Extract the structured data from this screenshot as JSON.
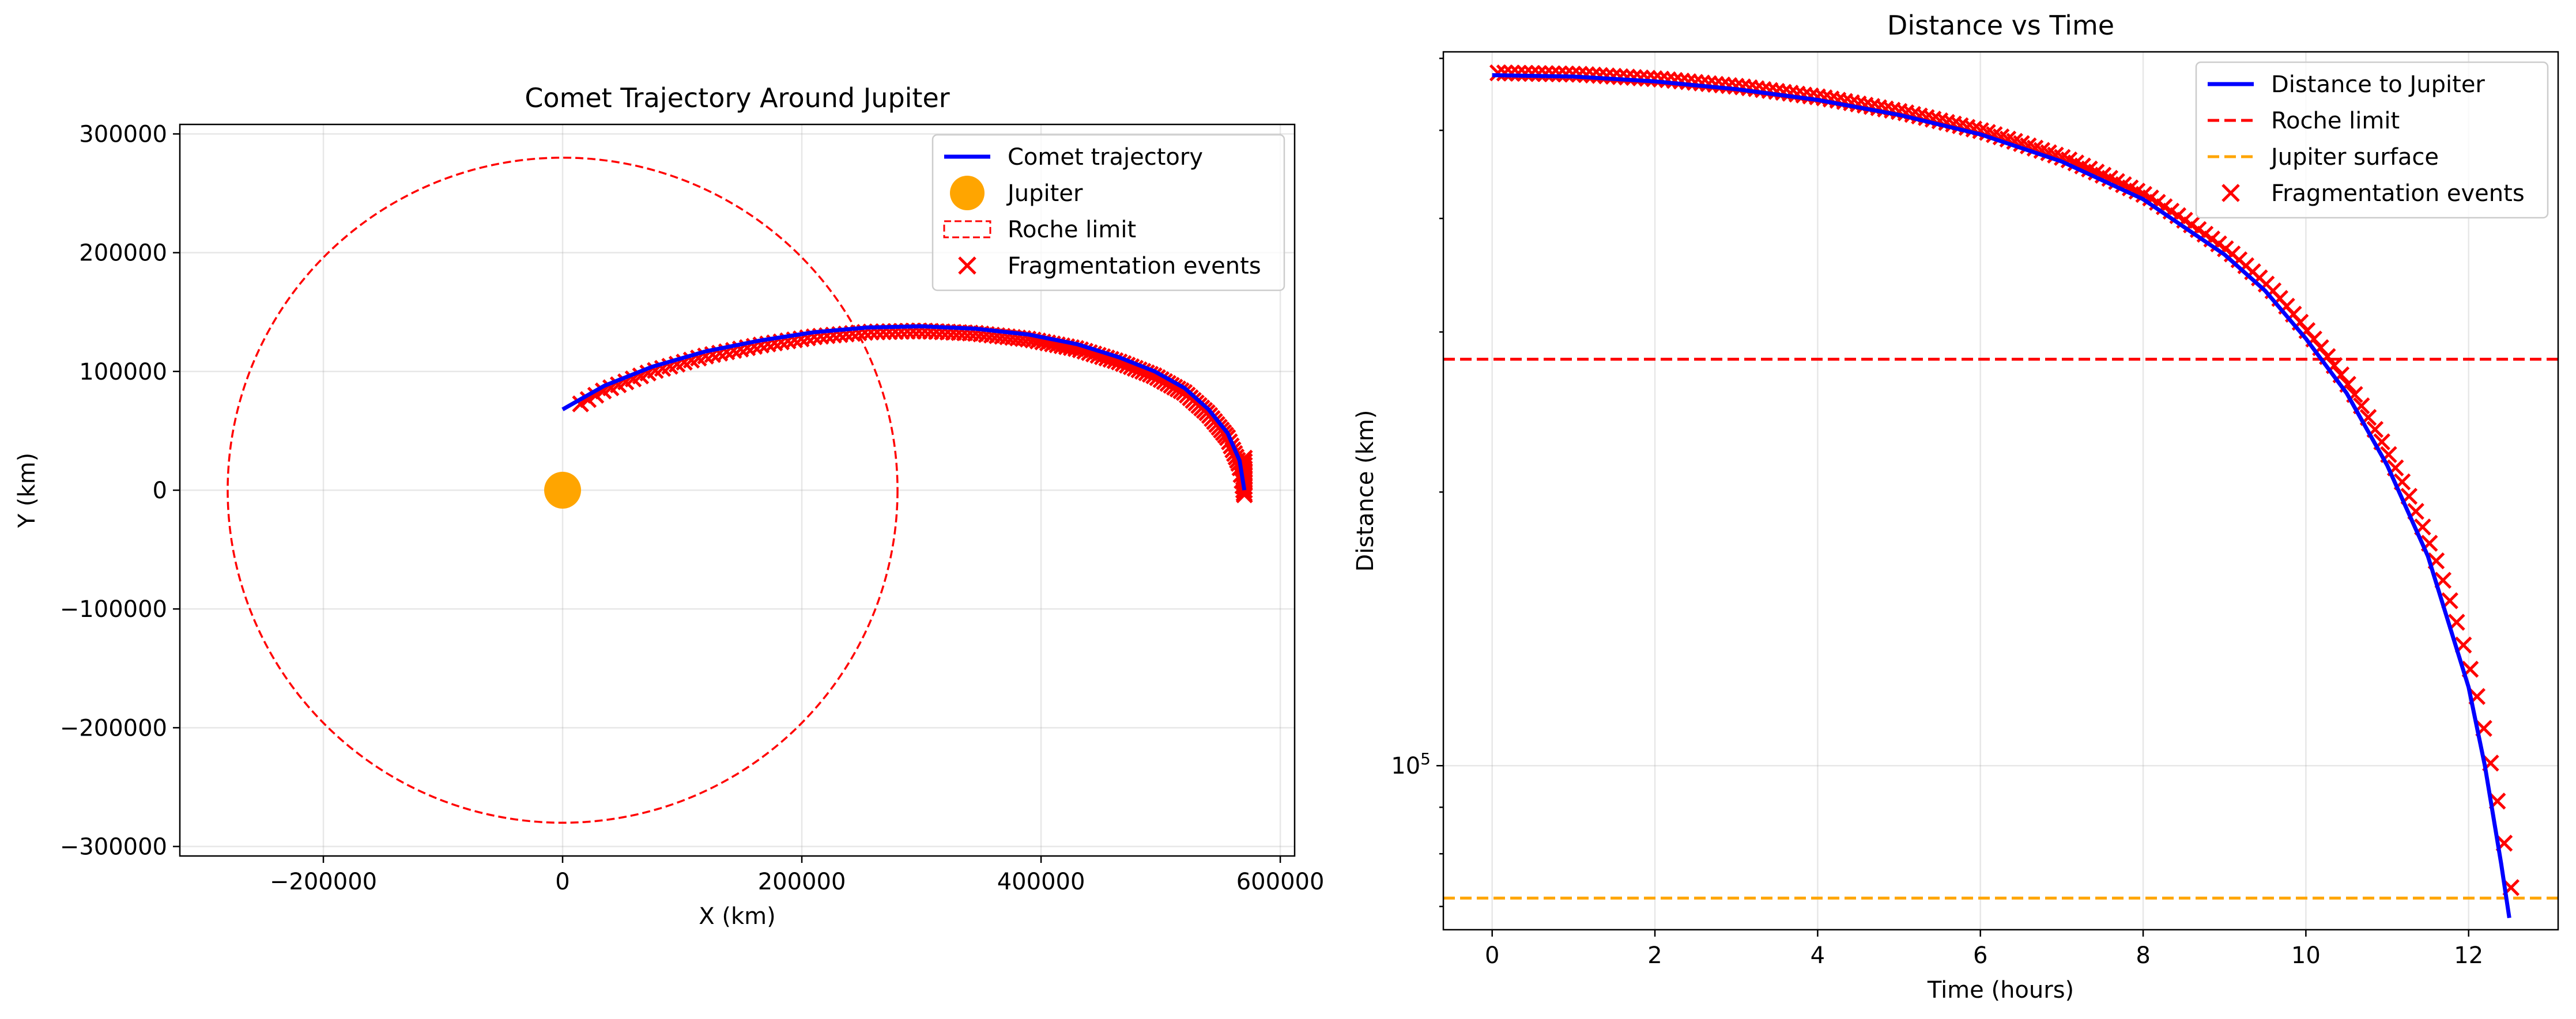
{
  "colors": {
    "trajectory": "#0000ff",
    "jupiter": "#ffa500",
    "roche": "#ff0000",
    "surface": "#ffa500",
    "fragments": "#ff0000"
  },
  "chart_data": [
    {
      "type": "scatter",
      "title": "Comet Trajectory Around Jupiter",
      "xlabel": "X (km)",
      "ylabel": "Y (km)",
      "xlim": [
        -320000,
        612000
      ],
      "ylim": [
        -308000,
        308000
      ],
      "xticks": [
        -200000,
        0,
        200000,
        400000,
        600000
      ],
      "xtick_labels": [
        "−200000",
        "0",
        "200000",
        "400000",
        "600000"
      ],
      "yticks": [
        -300000,
        -200000,
        -100000,
        0,
        100000,
        200000,
        300000
      ],
      "ytick_labels": [
        "−300000",
        "−200000",
        "−100000",
        "0",
        "100000",
        "200000",
        "300000"
      ],
      "grid": true,
      "legend": "top-right",
      "legend_entries": [
        "Comet trajectory",
        "Jupiter",
        "Roche limit",
        "Fragmentation events"
      ],
      "jupiter": {
        "x": 0,
        "y": 0
      },
      "roche_radius": 280000,
      "trajectory": {
        "x": [
          570000,
          566000,
          556000,
          540000,
          520000,
          495000,
          465000,
          430000,
          390000,
          345000,
          300000,
          255000,
          210000,
          165000,
          120000,
          75000,
          35000,
          0
        ],
        "y": [
          0,
          25000,
          48000,
          68000,
          86000,
          100000,
          112000,
          123000,
          131000,
          136000,
          138000,
          137000,
          133000,
          126000,
          117000,
          104000,
          88000,
          68000
        ]
      },
      "fragment_range": {
        "start": 570000,
        "end": 15000
      }
    },
    {
      "type": "line",
      "title": "Distance vs Time",
      "xlabel": "Time (hours)",
      "ylabel": "Distance (km)",
      "xlim": [
        -0.6,
        13.1
      ],
      "ylim": [
        66000,
        610000
      ],
      "yscale": "log",
      "xticks": [
        0,
        2,
        4,
        6,
        8,
        10,
        12
      ],
      "xtick_labels": [
        "0",
        "2",
        "4",
        "6",
        "8",
        "10",
        "12"
      ],
      "ytick_label_major": "10",
      "ytick_label_exp": "5",
      "grid": true,
      "legend": "top-right",
      "legend_entries": [
        "Distance to Jupiter",
        "Roche limit",
        "Jupiter surface",
        "Fragmentation events"
      ],
      "roche_limit": 280000,
      "jupiter_surface": 71500,
      "distance": {
        "x": [
          0,
          1,
          2,
          3,
          4,
          5,
          6,
          7,
          8,
          9,
          9.5,
          10,
          10.5,
          11,
          11.5,
          12,
          12.2,
          12.4,
          12.5
        ],
        "y": [
          575000,
          573000,
          566000,
          555000,
          540000,
          520000,
          495000,
          462000,
          420000,
          365000,
          333000,
          295000,
          257000,
          214000,
          170000,
          122000,
          100000,
          78000,
          68000
        ]
      }
    }
  ]
}
